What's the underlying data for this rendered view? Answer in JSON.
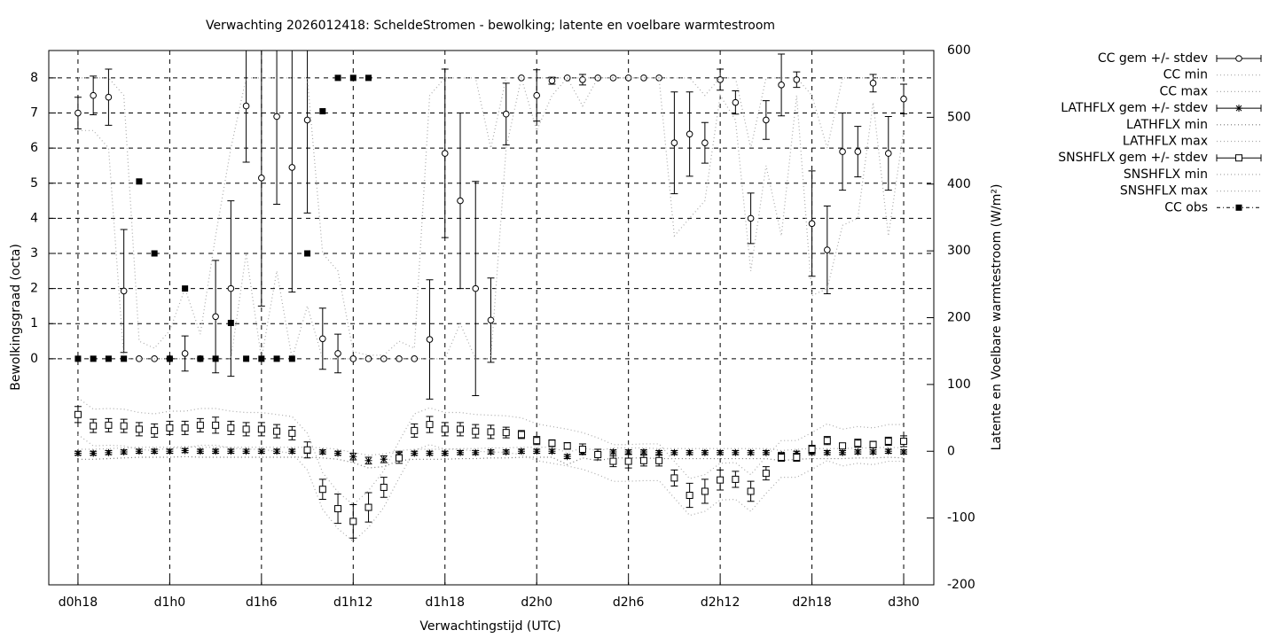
{
  "chart_data": {
    "type": "errorbar",
    "title": "Verwachting 2026012418: ScheldeStromen - bewolking; latente en voelbare warmtestroom",
    "x_label": "Verwachtingstijd (UTC)",
    "y_label": "Bewolkingsgraad (octa)",
    "y2_label": "Latente en Voelbare warmtestroom (W/m²)",
    "x": [
      18,
      19,
      20,
      21,
      22,
      23,
      24,
      25,
      26,
      27,
      28,
      29,
      30,
      31,
      32,
      33,
      34,
      35,
      36,
      37,
      38,
      39,
      40,
      41,
      42,
      43,
      44,
      45,
      46,
      47,
      48,
      49,
      50,
      51,
      52,
      53,
      54,
      55,
      56,
      57,
      58,
      59,
      60,
      61,
      62,
      63,
      64,
      65,
      66,
      67,
      68,
      69,
      70,
      71,
      72
    ],
    "xlim": [
      16.09,
      73.97
    ],
    "xticks": [
      {
        "value": 18,
        "label": "d0h18"
      },
      {
        "value": 24,
        "label": "d1h0"
      },
      {
        "value": 30,
        "label": "d1h6"
      },
      {
        "value": 36,
        "label": "d1h12"
      },
      {
        "value": 42,
        "label": "d1h18"
      },
      {
        "value": 48,
        "label": "d2h0"
      },
      {
        "value": 54,
        "label": "d2h6"
      },
      {
        "value": 60,
        "label": "d2h12"
      },
      {
        "value": 66,
        "label": "d2h18"
      },
      {
        "value": 72,
        "label": "d3h0"
      }
    ],
    "ylim": [
      -6.44,
      8.78
    ],
    "yticks": [
      0,
      1,
      2,
      3,
      4,
      5,
      6,
      7,
      8
    ],
    "y2lim": [
      -200,
      600
    ],
    "y2ticks": [
      -200,
      -100,
      0,
      100,
      200,
      300,
      400,
      500,
      600
    ],
    "grid": true,
    "legend": "right",
    "series": [
      {
        "name": "CC gem +/- stdev",
        "color": "#000000",
        "marker": "circle",
        "values": [
          7.0,
          7.5,
          7.45,
          1.93,
          0,
          0,
          0,
          0.15,
          0,
          1.2,
          2.0,
          7.2,
          5.15,
          6.9,
          5.45,
          6.8,
          0.57,
          0.15,
          0,
          0,
          0,
          0,
          0,
          0.55,
          5.85,
          4.5,
          2.0,
          1.1,
          6.97,
          8.0,
          7.5,
          7.92,
          8.0,
          7.95,
          8.0,
          8.0,
          8.0,
          8.0,
          8.0,
          6.15,
          6.4,
          6.15,
          7.95,
          7.3,
          4.0,
          6.8,
          7.8,
          7.95,
          3.85,
          3.1,
          5.9,
          5.9,
          7.85,
          5.85,
          7.4
        ],
        "errors": [
          0.45,
          0.55,
          0.8,
          1.75,
          0,
          0,
          0,
          0.5,
          0,
          1.6,
          2.5,
          1.6,
          3.65,
          2.5,
          3.55,
          2.65,
          0.87,
          0.55,
          0,
          0,
          0,
          0,
          0,
          1.7,
          2.4,
          2.5,
          3.05,
          1.2,
          0.88,
          0,
          0.73,
          0.1,
          0,
          0.15,
          0,
          0,
          0,
          0,
          0,
          1.45,
          1.2,
          0.58,
          0.3,
          0.33,
          0.72,
          0.55,
          0.88,
          0.22,
          1.5,
          1.25,
          1.1,
          0.72,
          0.25,
          1.05,
          0.42
        ]
      },
      {
        "name": "CC min",
        "color": "#aaaaaa",
        "marker": "dotted",
        "values": [
          6.5,
          6.5,
          6.0,
          0,
          0,
          0,
          0,
          0,
          0,
          0,
          0,
          3.0,
          0,
          2.5,
          0,
          1.5,
          0,
          0,
          0,
          0,
          0,
          0,
          0,
          0,
          0,
          1.0,
          0,
          0,
          6.0,
          8,
          6.5,
          7.5,
          8,
          7.2,
          8,
          8,
          8,
          8,
          8,
          3.5,
          4.0,
          4.5,
          7.5,
          6.8,
          2.5,
          5.5,
          3.5,
          7.5,
          1.8,
          2.0,
          3.8,
          4.0,
          7.3,
          3.5,
          6.5
        ]
      },
      {
        "name": "CC max",
        "color": "#aaaaaa",
        "marker": "dotted",
        "values": [
          8,
          8,
          8,
          7.5,
          0.5,
          0.3,
          0.8,
          2.0,
          0.7,
          3.5,
          6.0,
          8,
          8,
          8,
          8,
          8,
          3.0,
          2.5,
          0.2,
          0.1,
          0.1,
          0.5,
          0.3,
          7.5,
          8,
          8,
          8,
          6,
          8,
          8,
          8,
          8,
          8,
          8,
          8,
          8,
          8,
          8,
          8,
          8,
          8,
          7.5,
          8,
          8,
          6,
          8,
          8,
          8,
          7.5,
          6,
          8,
          8,
          8,
          8,
          8
        ]
      },
      {
        "name": "LATHFLX gem +/- stdev",
        "color": "#000000",
        "marker": "star",
        "axis": "y2",
        "values": [
          -3,
          -3,
          -2,
          -1,
          0,
          0,
          0,
          1,
          0,
          0,
          0,
          0,
          0,
          0,
          0,
          0,
          -1,
          -3,
          -8,
          -14,
          -12,
          -5,
          -3,
          -3,
          -3,
          -2,
          -2,
          -1,
          -1,
          0,
          0,
          0,
          -8,
          -1,
          -5,
          -1,
          -1,
          -1,
          -2,
          -2,
          -2,
          -2,
          -2,
          -2,
          -2,
          -2,
          -5,
          -3,
          -2,
          -2,
          -2,
          -1,
          -1,
          0,
          -1
        ],
        "errors": [
          3,
          3,
          3,
          3,
          3,
          3,
          3,
          3,
          3,
          3,
          3,
          3,
          3,
          3,
          3,
          3,
          3,
          3,
          5,
          5,
          5,
          5,
          3,
          3,
          3,
          3,
          3,
          3,
          3,
          3,
          3,
          3,
          3,
          3,
          3,
          3,
          3,
          3,
          3,
          3,
          3,
          3,
          3,
          3,
          3,
          3,
          3,
          3,
          3,
          3,
          3,
          3,
          3,
          3,
          3
        ]
      },
      {
        "name": "LATHFLX min",
        "color": "#777777",
        "marker": "dotted",
        "axis": "y2",
        "values": [
          -12,
          -12,
          -11,
          -10,
          -9,
          -9,
          -9,
          -8,
          -9,
          -9,
          -9,
          -9,
          -9,
          -9,
          -9,
          -9,
          -10,
          -12,
          -17,
          -25,
          -23,
          -14,
          -12,
          -12,
          -12,
          -11,
          -11,
          -10,
          -10,
          -9,
          -9,
          -9,
          -20,
          -10,
          -14,
          -10,
          -10,
          -10,
          -11,
          -11,
          -11,
          -11,
          -11,
          -11,
          -11,
          -11,
          -14,
          -12,
          -11,
          -11,
          -11,
          -10,
          -10,
          -9,
          -10
        ]
      },
      {
        "name": "LATHFLX max",
        "color": "#aaaaaa",
        "marker": "dotted",
        "axis": "y2",
        "values": [
          3,
          3,
          4,
          5,
          6,
          6,
          6,
          7,
          6,
          6,
          6,
          6,
          6,
          6,
          6,
          6,
          5,
          3,
          -2,
          -6,
          -4,
          1,
          3,
          3,
          3,
          4,
          4,
          5,
          5,
          6,
          6,
          6,
          -2,
          5,
          1,
          5,
          5,
          5,
          4,
          4,
          4,
          4,
          4,
          4,
          4,
          4,
          1,
          3,
          4,
          4,
          4,
          5,
          5,
          6,
          5
        ]
      },
      {
        "name": "SNSHFLX gem +/- stdev",
        "color": "#000000",
        "marker": "square",
        "axis": "y2",
        "values": [
          55,
          38,
          39,
          38,
          33,
          31,
          35,
          35,
          39,
          39,
          35,
          33,
          33,
          30,
          27,
          2,
          -57,
          -86,
          -105,
          -84,
          -54,
          -10,
          31,
          40,
          33,
          33,
          30,
          29,
          28,
          25,
          16,
          12,
          8,
          3,
          -5,
          -15,
          -15,
          -14,
          -14,
          -40,
          -66,
          -60,
          -43,
          -42,
          -60,
          -33,
          -9,
          -9,
          3,
          16,
          8,
          12,
          10,
          15,
          15
        ],
        "errors": [
          12,
          10,
          10,
          10,
          10,
          10,
          10,
          10,
          10,
          12,
          10,
          10,
          10,
          10,
          10,
          12,
          15,
          22,
          25,
          22,
          15,
          8,
          10,
          12,
          10,
          10,
          10,
          10,
          8,
          6,
          6,
          5,
          5,
          8,
          8,
          8,
          10,
          8,
          8,
          12,
          18,
          18,
          15,
          12,
          15,
          10,
          6,
          6,
          6,
          6,
          4,
          6,
          5,
          6,
          8
        ]
      },
      {
        "name": "SNSHFLX min",
        "color": "#aaaaaa",
        "marker": "dotted",
        "axis": "y2",
        "values": [
          25,
          8,
          9,
          8,
          3,
          1,
          5,
          5,
          9,
          9,
          5,
          3,
          3,
          0,
          -3,
          -28,
          -87,
          -116,
          -135,
          -114,
          -84,
          -40,
          1,
          10,
          3,
          3,
          0,
          -1,
          -2,
          -5,
          -14,
          -18,
          -22,
          -27,
          -35,
          -45,
          -45,
          -44,
          -44,
          -70,
          -96,
          -90,
          -73,
          -72,
          -90,
          -63,
          -39,
          -39,
          -27,
          -14,
          -22,
          -18,
          -20,
          -15,
          -15
        ]
      },
      {
        "name": "SNSHFLX max",
        "color": "#aaaaaa",
        "marker": "dotted",
        "axis": "y2",
        "values": [
          80,
          63,
          64,
          63,
          58,
          56,
          60,
          60,
          64,
          64,
          60,
          58,
          58,
          55,
          52,
          27,
          -32,
          -61,
          -80,
          -59,
          -29,
          15,
          56,
          65,
          58,
          58,
          55,
          54,
          53,
          50,
          41,
          37,
          33,
          28,
          20,
          10,
          10,
          11,
          11,
          -15,
          -41,
          -35,
          -18,
          -17,
          -35,
          -8,
          16,
          16,
          28,
          41,
          33,
          37,
          35,
          40,
          40
        ]
      },
      {
        "name": "CC obs",
        "color": "#000000",
        "marker": "filled-square",
        "values": [
          0,
          0,
          0,
          0,
          5.05,
          3.0,
          0,
          2.0,
          0,
          0,
          1.02,
          0,
          0,
          0,
          0,
          3.0,
          7.05,
          8.0,
          8.0,
          8.0,
          null,
          null,
          null,
          null,
          null,
          null,
          null,
          null,
          null,
          null,
          null,
          null,
          null,
          null,
          null,
          null,
          null,
          null,
          null,
          null,
          null,
          null,
          null,
          null,
          null,
          null,
          null,
          null,
          null,
          null,
          null,
          null,
          null,
          null,
          null
        ]
      }
    ]
  }
}
